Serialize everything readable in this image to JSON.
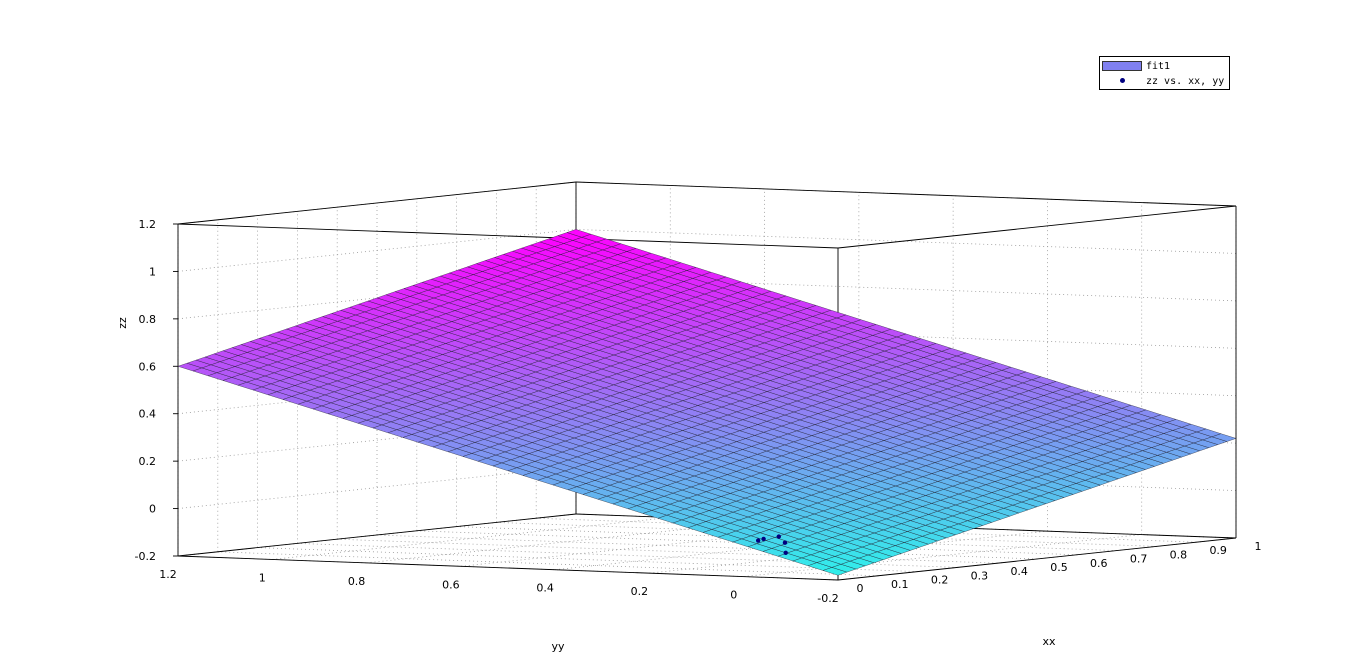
{
  "chart_data": {
    "type": "surface3d",
    "xlabel": "xx",
    "ylabel": "yy",
    "zlabel": "zz",
    "x_ticks": [
      "0",
      "0.1",
      "0.2",
      "0.3",
      "0.4",
      "0.5",
      "0.6",
      "0.7",
      "0.8",
      "0.9",
      "1"
    ],
    "y_ticks": [
      "1.2",
      "1",
      "0.8",
      "0.6",
      "0.4",
      "0.2",
      "0",
      "-0.2"
    ],
    "z_ticks": [
      "1.2",
      "1",
      "0.8",
      "0.6",
      "0.4",
      "0.2",
      "0",
      "-0.2"
    ],
    "xlim": [
      0,
      1
    ],
    "ylim": [
      -0.2,
      1.2
    ],
    "zlim": [
      -0.2,
      1.2
    ],
    "grid": true,
    "legend_position": "top-right",
    "series": [
      {
        "name": "fit1",
        "kind": "surface",
        "corner_z": {
          "x0_y1.2": 0.6,
          "x1_y1.2": 1.0,
          "x0_y-0.2": -0.18,
          "x1_y-0.2": 0.22
        },
        "color_low": "#2ff0ea",
        "color_high": "#ff00ff",
        "legend_color": "#8080f0"
      },
      {
        "name": "zz vs. xx, yy",
        "kind": "scatter",
        "color": "#000080",
        "points": [
          {
            "x": 0.05,
            "y": 0.0,
            "z": -0.05
          },
          {
            "x": 0.06,
            "y": 0.02,
            "z": -0.06
          },
          {
            "x": 0.08,
            "y": -0.02,
            "z": -0.07
          },
          {
            "x": 0.1,
            "y": 0.01,
            "z": -0.05
          },
          {
            "x": 0.07,
            "y": -0.03,
            "z": -0.11
          }
        ]
      }
    ]
  },
  "legend": {
    "entries": [
      "fit1",
      "zz vs. xx, yy"
    ]
  }
}
